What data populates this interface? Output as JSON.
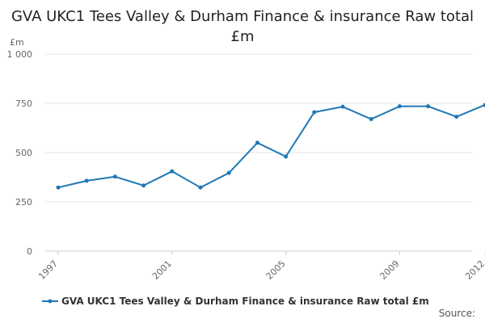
{
  "colors": {
    "series": "#1f78b4",
    "grid": "#e6e6e6",
    "axis": "#cccccc",
    "tick_text": "#666666"
  },
  "chart_data": {
    "type": "line",
    "title": "GVA UKC1 Tees Valley & Durham Finance & insurance Raw total £m",
    "ylabel": "£m",
    "ylim": [
      0,
      1000
    ],
    "yticks": [
      0,
      250,
      500,
      750,
      1000
    ],
    "ytick_labels": [
      "0",
      "250",
      "500",
      "750",
      "1 000"
    ],
    "xlim": [
      1997,
      2012
    ],
    "xticks": [
      1997,
      2001,
      2005,
      2009,
      2012
    ],
    "xtick_labels": [
      "1997",
      "2001",
      "2005",
      "2009",
      "2012"
    ],
    "grid": true,
    "legend": "bottom",
    "series": [
      {
        "name": "GVA UKC1 Tees Valley & Durham Finance & insurance Raw total £m",
        "x": [
          1997,
          1998,
          1999,
          2000,
          2001,
          2002,
          2003,
          2004,
          2005,
          2006,
          2007,
          2008,
          2009,
          2010,
          2011,
          2012
        ],
        "values": [
          323,
          357,
          378,
          333,
          405,
          323,
          397,
          550,
          480,
          705,
          733,
          670,
          735,
          735,
          682,
          742
        ]
      }
    ]
  },
  "footer": {
    "source": "Source:"
  }
}
